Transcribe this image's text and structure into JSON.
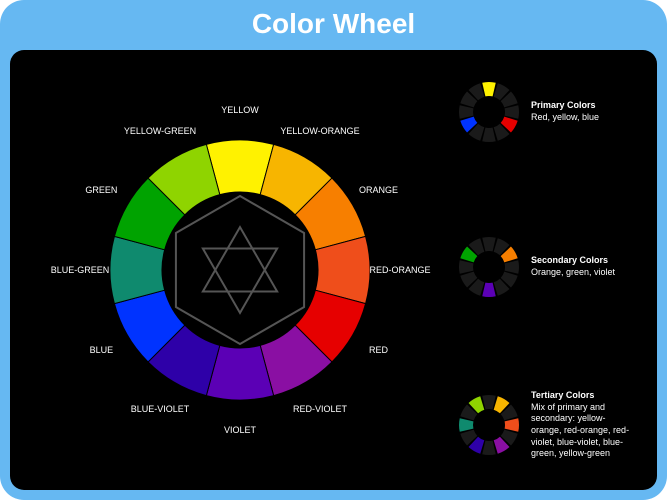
{
  "title": "Color Wheel",
  "frame": {
    "background": "#66b8f2",
    "panel_background": "#000000",
    "title_color": "#ffffff",
    "label_color": "#ffffff"
  },
  "wheel": {
    "outer_radius": 130,
    "inner_radius": 78,
    "center_figure_stroke": "#555555",
    "segments": [
      {
        "label": "YELLOW",
        "color": "#fff200",
        "angle_deg": -90
      },
      {
        "label": "YELLOW-ORANGE",
        "color": "#f7b500",
        "angle_deg": -60
      },
      {
        "label": "ORANGE",
        "color": "#f77f00",
        "angle_deg": -30
      },
      {
        "label": "RED-ORANGE",
        "color": "#ef4e1b",
        "angle_deg": 0
      },
      {
        "label": "RED",
        "color": "#e60000",
        "angle_deg": 30
      },
      {
        "label": "RED-VIOLET",
        "color": "#8a0fa3",
        "angle_deg": 60
      },
      {
        "label": "VIOLET",
        "color": "#5b00b5",
        "angle_deg": 90
      },
      {
        "label": "BLUE-VIOLET",
        "color": "#2e00a8",
        "angle_deg": 120
      },
      {
        "label": "BLUE",
        "color": "#0033ff",
        "angle_deg": 150
      },
      {
        "label": "BLUE-GREEN",
        "color": "#0f8a6e",
        "angle_deg": 180
      },
      {
        "label": "GREEN",
        "color": "#00a300",
        "angle_deg": 210
      },
      {
        "label": "YELLOW-GREEN",
        "color": "#8fd400",
        "angle_deg": 240
      }
    ],
    "label_radius": 160
  },
  "legends": [
    {
      "name": "primary",
      "title": "Primary Colors",
      "desc": "Red, yellow, blue",
      "highlight": [
        "#fff200",
        "#e60000",
        "#0033ff"
      ],
      "angles": [
        -90,
        30,
        150
      ]
    },
    {
      "name": "secondary",
      "title": "Secondary Colors",
      "desc": "Orange, green, violet",
      "highlight": [
        "#f77f00",
        "#00a300",
        "#5b00b5"
      ],
      "angles": [
        -30,
        210,
        90
      ]
    },
    {
      "name": "tertiary",
      "title": "Tertiary Colors",
      "desc": "Mix of primary and secondary: yellow-orange, red-orange, red-violet, blue-violet, blue-green, yellow-green",
      "highlight": [
        "#f7b500",
        "#ef4e1b",
        "#8a0fa3",
        "#2e00a8",
        "#0f8a6e",
        "#8fd400"
      ],
      "angles": [
        -60,
        0,
        60,
        120,
        180,
        240
      ]
    }
  ],
  "mini_wheel": {
    "outer_radius": 30,
    "inner_radius": 16,
    "segment_gap_deg": 4
  }
}
